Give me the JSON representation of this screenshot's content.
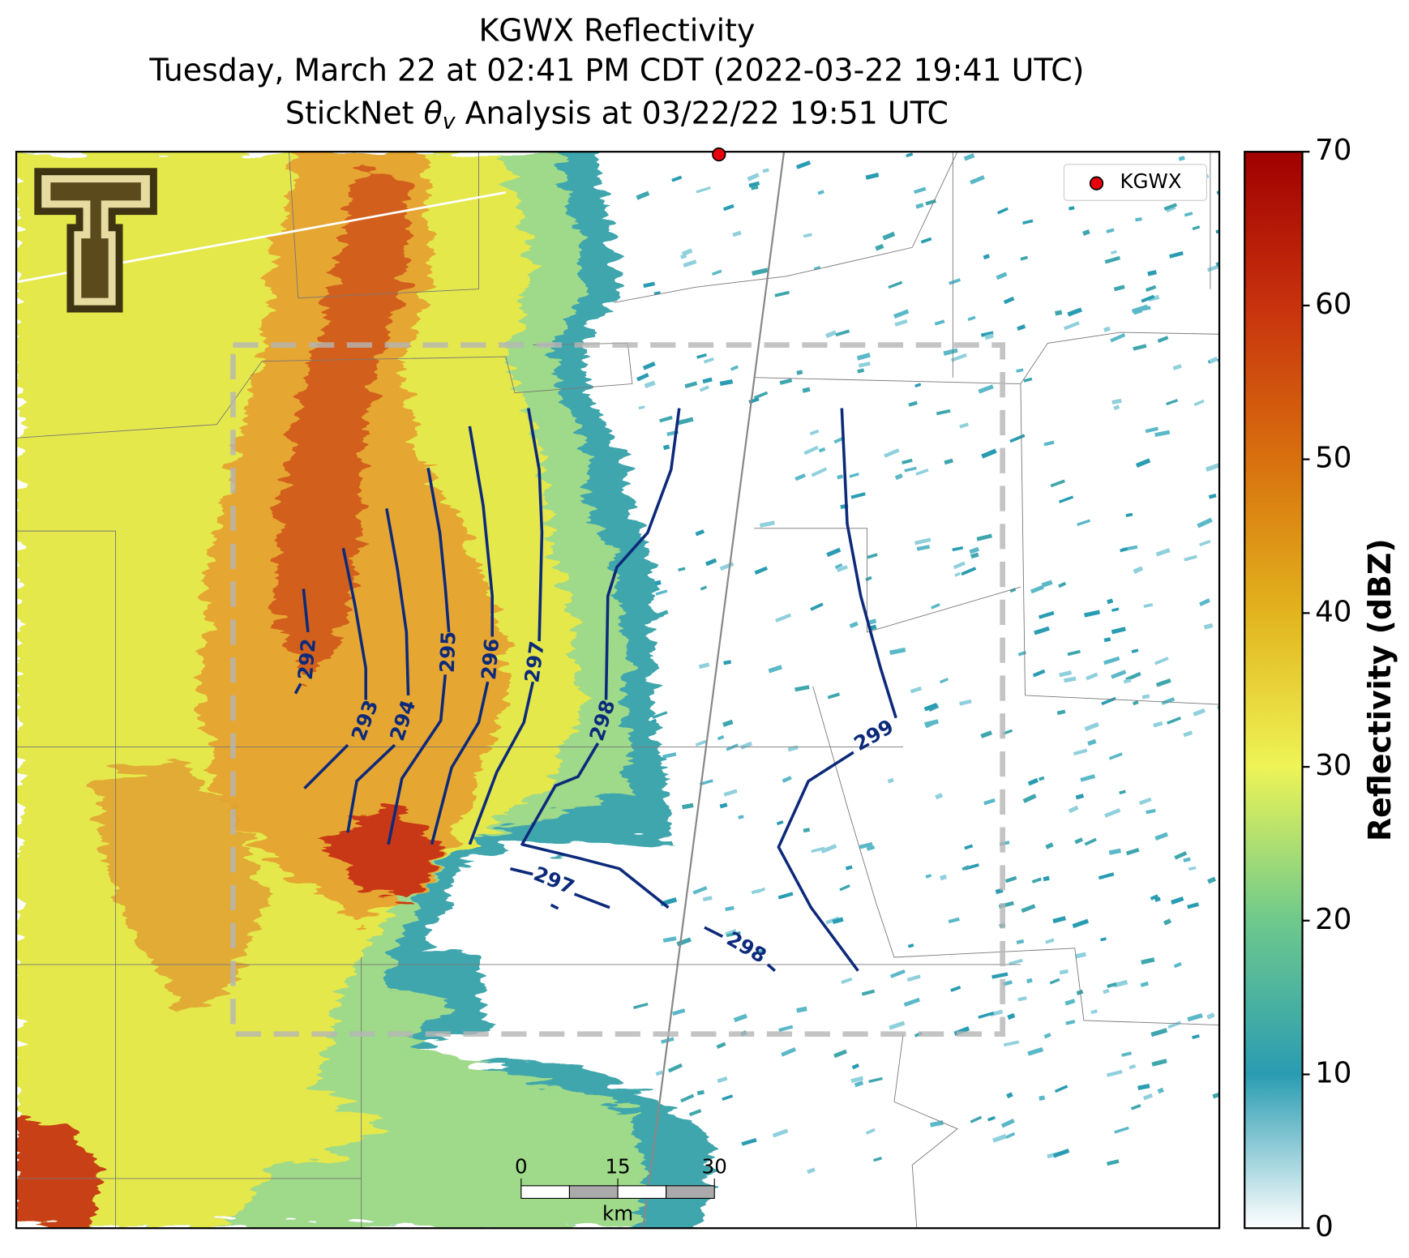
{
  "title": {
    "line1": "KGWX Reflectivity",
    "line2": "Tuesday, March 22 at 02:41 PM CDT (2022-03-22 19:41 UTC)",
    "line3_parts": [
      "StickNet ",
      "θ",
      "v",
      " Analysis at 03/22/22 19:51 UTC"
    ]
  },
  "legend": {
    "label": "KGWX",
    "marker_color": "#e8000b"
  },
  "colorbar": {
    "label": "Reflectivity (dBZ)",
    "lim": [
      0,
      70
    ],
    "ticks": [
      0,
      10,
      20,
      30,
      40,
      50,
      60,
      70
    ]
  },
  "contours": [
    {
      "label": 292
    },
    {
      "label": 293
    },
    {
      "label": 294
    },
    {
      "label": 295
    },
    {
      "label": 296
    },
    {
      "label": 297
    },
    {
      "label": 298
    },
    {
      "label": 299
    },
    {
      "label": 297
    },
    {
      "label": 298
    }
  ],
  "scale_bar": {
    "ticks": [
      0,
      15,
      30
    ],
    "unit": "km"
  }
}
